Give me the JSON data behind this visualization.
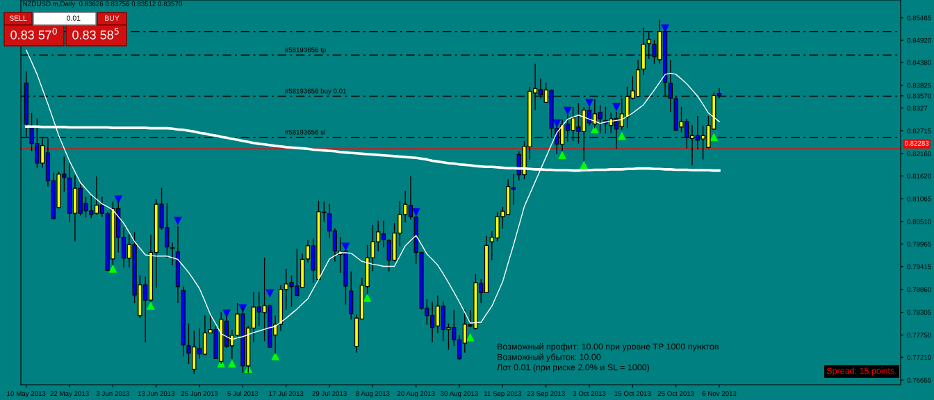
{
  "chart_data": {
    "type": "candlestick",
    "title": "NZDUSD.m,Daily  0.83626 0.83756 0.83512 0.83570",
    "annotations": [
      "SELL",
      "0.01",
      "BUY",
      "0.83 57$^{0}$",
      "0.83 58$^{5}$",
      "Возможный профит: 10.00 при уровне TP 1000 пунктов",
      "Возможный убыток: 10.00",
      "Лот 0.01 (при риске 2.0% и SL = 1000)",
      "Spread: 15 points."
    ],
    "categories": [
      "10 May 2013",
      null,
      null,
      null,
      null,
      null,
      null,
      null,
      "22 May 2013",
      null,
      null,
      null,
      null,
      null,
      null,
      null,
      "3 Jun 2013",
      null,
      null,
      null,
      null,
      null,
      null,
      null,
      "13 Jun 2013",
      null,
      null,
      null,
      null,
      null,
      null,
      null,
      "25 Jun 2013",
      null,
      null,
      null,
      null,
      null,
      null,
      null,
      "5 Jul 2013",
      null,
      null,
      null,
      null,
      null,
      null,
      null,
      "17 Jul 2013",
      null,
      null,
      null,
      null,
      null,
      null,
      null,
      "29 Jul 2013",
      null,
      null,
      null,
      null,
      null,
      null,
      null,
      "8 Aug 2013",
      null,
      null,
      null,
      null,
      null,
      null,
      null,
      "20 Aug 2013",
      null,
      null,
      null,
      null,
      null,
      null,
      null,
      "30 Aug 2013",
      null,
      null,
      null,
      null,
      null,
      null,
      null,
      "11 Sep 2013",
      null,
      null,
      null,
      null,
      null,
      null,
      null,
      "23 Sep 2013",
      null,
      null,
      null,
      null,
      null,
      null,
      null,
      "3 Oct 2013",
      null,
      null,
      null,
      null,
      null,
      null,
      null,
      "15 Oct 2013",
      null,
      null,
      null,
      null,
      null,
      null,
      null,
      "25 Oct 2013",
      null,
      null,
      null,
      null,
      null,
      null,
      null,
      "6 Nov 2013"
    ],
    "ylim": [
      0.7654,
      0.859
    ],
    "yticks": [
      0.85465,
      {
        "value": 0.8492,
        "label": "0.84920"
      },
      {
        "value": 0.8438,
        "label": "0.84380"
      },
      0.83825,
      {
        "value": 0.8357,
        "label": "0.83570"
      },
      0.8327,
      0.82715,
      {
        "value": 0.8216,
        "label": "0.82160"
      },
      {
        "value": 0.8162,
        "label": "0.81620"
      },
      0.81065,
      {
        "value": 0.8051,
        "label": "0.80510"
      },
      0.79965,
      0.79415,
      {
        "value": 0.7886,
        "label": "0.78860"
      },
      0.78305,
      {
        "value": 0.7775,
        "label": "0.77750"
      },
      {
        "value": 0.7721,
        "label": "0.77210"
      },
      0.76655
    ],
    "ref_lines": [
      {
        "axis": "y",
        "value": 0.8513,
        "label": null,
        "color": "#000000",
        "line_style": "dashed"
      },
      {
        "axis": "y",
        "value": 0.8456,
        "label": "#58193656 tp",
        "color": "#000000",
        "line_style": "dashed"
      },
      {
        "axis": "y",
        "value": 0.8356,
        "label": "#58193656 buy 0.01",
        "color": "#000000",
        "line_style": "dashed"
      },
      {
        "axis": "y",
        "value": 0.8256,
        "label": "#58193656 sl",
        "color": "#000000",
        "line_style": "dashed"
      },
      {
        "axis": "y",
        "value": 0.82283,
        "label": "0.82283",
        "color": "#ff0000",
        "line_style": "solid"
      }
    ],
    "series": [
      {
        "type": "line",
        "color": "#ffffff",
        "values": [
          0.8468,
          0.8439,
          0.8409,
          0.8373,
          0.8337,
          0.8299,
          0.826,
          0.8229,
          0.8198,
          0.8172,
          0.8146,
          0.8131,
          0.8116,
          0.8105,
          0.8094,
          0.8087,
          0.8079,
          0.8063,
          0.8047,
          0.8025,
          0.8002,
          0.7986,
          0.797,
          0.7968,
          0.7967,
          0.7967,
          0.7967,
          0.7963,
          0.7959,
          0.7943,
          0.7927,
          0.7908,
          0.7888,
          0.7857,
          0.7825,
          0.7802,
          0.7778,
          0.7771,
          0.7764,
          0.7768,
          0.7771,
          0.7776,
          0.7781,
          0.7785,
          0.7789,
          0.7793,
          0.7796,
          0.7806,
          0.7816,
          0.7827,
          0.7838,
          0.7851,
          0.7863,
          0.7887,
          0.791,
          0.7935,
          0.796,
          0.7968,
          0.7975,
          0.7975,
          0.7974,
          0.7964,
          0.7954,
          0.7951,
          0.7947,
          0.7945,
          0.7942,
          0.7942,
          0.7942,
          0.7967,
          0.7992,
          0.8005,
          0.8017,
          0.7995,
          0.7972,
          0.7959,
          0.7945,
          0.7924,
          0.7902,
          0.7879,
          0.7855,
          0.783,
          0.7804,
          0.7805,
          0.7806,
          0.7826,
          0.7845,
          0.7875,
          0.7905,
          0.795,
          0.7994,
          0.8041,
          0.8088,
          0.8118,
          0.8148,
          0.8178,
          0.8208,
          0.8238,
          0.8267,
          0.8284,
          0.83,
          0.8305,
          0.831,
          0.8305,
          0.83,
          0.8295,
          0.829,
          0.8293,
          0.8295,
          0.8297,
          0.8299,
          0.8307,
          0.8315,
          0.8325,
          0.8335,
          0.8353,
          0.8371,
          0.839,
          0.8409,
          0.8412,
          0.8409,
          0.8398,
          0.8386,
          0.8371,
          0.8356,
          0.8336,
          0.8315,
          0.8305,
          0.8294
        ]
      },
      {
        "type": "line",
        "color": "#ffffff",
        "values": [
          0.8282,
          0.8282,
          0.8282,
          0.8281,
          0.8281,
          0.8281,
          0.8281,
          0.8281,
          0.828,
          0.828,
          0.828,
          0.828,
          0.828,
          0.828,
          0.828,
          0.828,
          0.8279,
          0.8279,
          0.8279,
          0.8279,
          0.8279,
          0.8279,
          0.8279,
          0.8278,
          0.8278,
          0.8278,
          0.8278,
          0.8277,
          0.8275,
          0.8274,
          0.8272,
          0.827,
          0.8267,
          0.8265,
          0.8262,
          0.826,
          0.8257,
          0.8255,
          0.8252,
          0.825,
          0.8247,
          0.8245,
          0.8242,
          0.824,
          0.8239,
          0.8237,
          0.8235,
          0.8234,
          0.8232,
          0.8231,
          0.823,
          0.8229,
          0.8228,
          0.8226,
          0.8225,
          0.8224,
          0.8223,
          0.8222,
          0.822,
          0.8219,
          0.8218,
          0.8217,
          0.8216,
          0.8215,
          0.8214,
          0.8213,
          0.8212,
          0.8211,
          0.821,
          0.8209,
          0.8208,
          0.8207,
          0.8206,
          0.8204,
          0.8202,
          0.8199,
          0.8197,
          0.8195,
          0.8193,
          0.8192,
          0.819,
          0.8189,
          0.8188,
          0.8186,
          0.8185,
          0.8184,
          0.8184,
          0.8183,
          0.8182,
          0.8181,
          0.8181,
          0.818,
          0.818,
          0.8179,
          0.8178,
          0.8178,
          0.8177,
          0.8177,
          0.8176,
          0.8176,
          0.8176,
          0.8175,
          0.8175,
          0.8176,
          0.8176,
          0.8177,
          0.8177,
          0.8177,
          0.8178,
          0.8178,
          0.8178,
          0.8179,
          0.8179,
          0.818,
          0.818,
          0.818,
          0.8179,
          0.8179,
          0.8178,
          0.8178,
          0.8177,
          0.8177,
          0.8177,
          0.8176,
          0.8176,
          0.8176,
          0.8176,
          0.8175,
          0.8175
        ]
      },
      {
        "ohlc": [
          [
            0.8388,
            0.8416,
            0.8256,
            0.8288
          ],
          [
            0.8278,
            0.8315,
            0.8222,
            0.8241
          ],
          [
            0.8241,
            0.8302,
            0.8182,
            0.8193
          ],
          [
            0.8193,
            0.8254,
            0.8182,
            0.8236
          ],
          [
            0.8218,
            0.8254,
            0.8136,
            0.815
          ],
          [
            0.815,
            0.817,
            0.8056,
            0.8058
          ],
          [
            0.8085,
            0.8172,
            0.8083,
            0.8166
          ],
          [
            0.8166,
            0.8209,
            0.8124,
            0.8159
          ],
          [
            0.8157,
            0.8193,
            0.8049,
            0.8071
          ],
          [
            0.8071,
            0.8164,
            0.8003,
            0.8132
          ],
          [
            0.8132,
            0.8142,
            0.8066,
            0.8071
          ],
          [
            0.8095,
            0.8111,
            0.8061,
            0.8077
          ],
          [
            0.8077,
            0.8114,
            0.8059,
            0.8068
          ],
          [
            0.8071,
            0.8161,
            0.8068,
            0.8091
          ],
          [
            0.8091,
            0.8111,
            0.8062,
            0.8071
          ],
          [
            0.807,
            0.8075,
            0.793,
            0.7932
          ],
          [
            0.796,
            0.8099,
            0.7945,
            0.8082
          ],
          [
            0.8082,
            0.8099,
            0.7976,
            0.8013
          ],
          [
            0.8013,
            0.8037,
            0.7939,
            0.7962
          ],
          [
            0.7962,
            0.802,
            0.7939,
            0.7995
          ],
          [
            0.7995,
            0.8025,
            0.7853,
            0.7872
          ],
          [
            0.7822,
            0.792,
            0.7816,
            0.7897
          ],
          [
            0.7897,
            0.7917,
            0.7757,
            0.786
          ],
          [
            0.786,
            0.8019,
            0.7856,
            0.7976
          ],
          [
            0.7976,
            0.8105,
            0.789,
            0.8093
          ],
          [
            0.8093,
            0.8133,
            0.8031,
            0.8036
          ],
          [
            0.8036,
            0.8096,
            0.7963,
            0.7989
          ],
          [
            0.7987,
            0.8,
            0.7945,
            0.7986
          ],
          [
            0.7977,
            0.804,
            0.7853,
            0.7893
          ],
          [
            0.7883,
            0.7893,
            0.7723,
            0.7751
          ],
          [
            0.7749,
            0.7803,
            0.7705,
            0.7731
          ],
          [
            0.7692,
            0.7785,
            0.768,
            0.7746
          ],
          [
            0.7742,
            0.7791,
            0.7717,
            0.7729
          ],
          [
            0.7728,
            0.7822,
            0.7726,
            0.778
          ],
          [
            0.778,
            0.7822,
            0.7779,
            0.7788
          ],
          [
            0.7788,
            0.7797,
            0.7717,
            0.7718
          ],
          [
            0.7711,
            0.7831,
            0.7705,
            0.7813
          ],
          [
            0.7809,
            0.7822,
            0.7744,
            0.7747
          ],
          [
            0.7749,
            0.7788,
            0.7717,
            0.7774
          ],
          [
            0.7774,
            0.7853,
            0.7766,
            0.7826
          ],
          [
            0.7826,
            0.7843,
            0.7683,
            0.77
          ],
          [
            0.77,
            0.7797,
            0.7683,
            0.7792
          ],
          [
            0.7792,
            0.788,
            0.7757,
            0.7843
          ],
          [
            0.7843,
            0.788,
            0.7797,
            0.7831
          ],
          [
            0.783,
            0.7963,
            0.776,
            0.7846
          ],
          [
            0.7846,
            0.7849,
            0.7743,
            0.7745
          ],
          [
            0.7775,
            0.7822,
            0.7729,
            0.7801
          ],
          [
            0.7801,
            0.7896,
            0.7785,
            0.7886
          ],
          [
            0.7886,
            0.7936,
            0.7837,
            0.7899
          ],
          [
            0.7903,
            0.792,
            0.7843,
            0.7893
          ],
          [
            0.7894,
            0.7985,
            0.787,
            0.7871
          ],
          [
            0.7891,
            0.7973,
            0.789,
            0.7959
          ],
          [
            0.796,
            0.8006,
            0.7951,
            0.7992
          ],
          [
            0.7992,
            0.801,
            0.7902,
            0.7933
          ],
          [
            0.791,
            0.8102,
            0.7908,
            0.8075
          ],
          [
            0.8074,
            0.8099,
            0.805,
            0.8073
          ],
          [
            0.807,
            0.8094,
            0.801,
            0.8028
          ],
          [
            0.8028,
            0.8034,
            0.7954,
            0.798
          ],
          [
            0.7971,
            0.8013,
            0.7926,
            0.7979
          ],
          [
            0.7979,
            0.7982,
            0.7849,
            0.7894
          ],
          [
            0.7882,
            0.793,
            0.7813,
            0.7827
          ],
          [
            0.7747,
            0.7825,
            0.7732,
            0.7816
          ],
          [
            0.7814,
            0.7914,
            0.7813,
            0.7896
          ],
          [
            0.7893,
            0.7994,
            0.7874,
            0.7963
          ],
          [
            0.7963,
            0.8043,
            0.793,
            0.8002
          ],
          [
            0.8002,
            0.8053,
            0.7979,
            0.8026
          ],
          [
            0.8021,
            0.8053,
            0.7988,
            0.8007
          ],
          [
            0.8005,
            0.8008,
            0.793,
            0.7957
          ],
          [
            0.7957,
            0.8048,
            0.7954,
            0.8023
          ],
          [
            0.8023,
            0.81,
            0.7991,
            0.8068
          ],
          [
            0.8068,
            0.8126,
            0.8049,
            0.8093
          ],
          [
            0.809,
            0.8161,
            0.8056,
            0.8063
          ],
          [
            0.8062,
            0.8065,
            0.7948,
            0.7976
          ],
          [
            0.7976,
            0.7977,
            0.7837,
            0.784
          ],
          [
            0.784,
            0.7862,
            0.78,
            0.7822
          ],
          [
            0.7822,
            0.7856,
            0.7757,
            0.7793
          ],
          [
            0.7797,
            0.7871,
            0.7779,
            0.7845
          ],
          [
            0.7845,
            0.7856,
            0.776,
            0.7788
          ],
          [
            0.7789,
            0.7803,
            0.7739,
            0.7793
          ],
          [
            0.7793,
            0.7835,
            0.7748,
            0.7763
          ],
          [
            0.7763,
            0.7775,
            0.7714,
            0.7717
          ],
          [
            0.7755,
            0.7837,
            0.7732,
            0.7801
          ],
          [
            0.78,
            0.7835,
            0.7794,
            0.7796
          ],
          [
            0.7791,
            0.7923,
            0.7788,
            0.7902
          ],
          [
            0.79,
            0.7911,
            0.7853,
            0.7878
          ],
          [
            0.7878,
            0.8016,
            0.7877,
            0.7993
          ],
          [
            0.8002,
            0.8028,
            0.7957,
            0.8013
          ],
          [
            0.8011,
            0.8075,
            0.8003,
            0.8063
          ],
          [
            0.8063,
            0.8087,
            0.8034,
            0.8076
          ],
          [
            0.8068,
            0.8154,
            0.8067,
            0.8136
          ],
          [
            0.8133,
            0.8167,
            0.8092,
            0.813
          ],
          [
            0.8214,
            0.8222,
            0.8151,
            0.8165
          ],
          [
            0.8165,
            0.8247,
            0.8154,
            0.8234
          ],
          [
            0.8233,
            0.8379,
            0.8202,
            0.8368
          ],
          [
            0.8364,
            0.8435,
            0.8322,
            0.8375
          ],
          [
            0.8372,
            0.8399,
            0.8351,
            0.8359
          ],
          [
            0.8341,
            0.8389,
            0.834,
            0.8371
          ],
          [
            0.837,
            0.8371,
            0.8254,
            0.8278
          ],
          [
            0.8278,
            0.8284,
            0.8215,
            0.8239
          ],
          [
            0.8239,
            0.8299,
            0.8222,
            0.8286
          ],
          [
            0.8288,
            0.8311,
            0.8244,
            0.8273
          ],
          [
            0.8273,
            0.833,
            0.8247,
            0.8303
          ],
          [
            0.8281,
            0.8339,
            0.8241,
            0.827
          ],
          [
            0.827,
            0.833,
            0.8198,
            0.8322
          ],
          [
            0.8322,
            0.833,
            0.8284,
            0.8291
          ],
          [
            0.8288,
            0.8348,
            0.8278,
            0.8313
          ],
          [
            0.8317,
            0.8334,
            0.8266,
            0.8301
          ],
          [
            0.8297,
            0.833,
            0.8265,
            0.829
          ],
          [
            0.8285,
            0.8316,
            0.8266,
            0.8301
          ],
          [
            0.8302,
            0.8318,
            0.8228,
            0.8276
          ],
          [
            0.8282,
            0.8351,
            0.8274,
            0.8313
          ],
          [
            0.8305,
            0.8379,
            0.8278,
            0.8355
          ],
          [
            0.8351,
            0.8404,
            0.8348,
            0.8369
          ],
          [
            0.8356,
            0.8444,
            0.8353,
            0.842
          ],
          [
            0.8422,
            0.8523,
            0.8407,
            0.8482
          ],
          [
            0.8484,
            0.8513,
            0.8447,
            0.8494
          ],
          [
            0.8482,
            0.8493,
            0.8435,
            0.8452
          ],
          [
            0.8445,
            0.8542,
            0.8435,
            0.8513
          ],
          [
            0.8513,
            0.8518,
            0.8355,
            0.839
          ],
          [
            0.8387,
            0.8444,
            0.8318,
            0.8351
          ],
          [
            0.835,
            0.8355,
            0.8272,
            0.8273
          ],
          [
            0.8281,
            0.833,
            0.8268,
            0.8294
          ],
          [
            0.8294,
            0.8301,
            0.8229,
            0.8255
          ],
          [
            0.8253,
            0.8285,
            0.8188,
            0.826
          ],
          [
            0.826,
            0.8308,
            0.8227,
            0.8249
          ],
          [
            0.8252,
            0.8284,
            0.8202,
            0.826
          ],
          [
            0.8231,
            0.8308,
            0.8229,
            0.8285
          ],
          [
            0.8276,
            0.8365,
            0.8274,
            0.8358
          ],
          [
            0.83626,
            0.83756,
            0.83512,
            0.8357
          ]
        ],
        "colors": [
          "#0000ff",
          "#0000ff",
          "#0000ff",
          "#ffff00",
          "#0000ff",
          "#0000ff",
          "#ffff00",
          "#0000ff",
          "#0000ff",
          "#ffff00",
          "#0000ff",
          "#0000ff",
          "#0000ff",
          "#ffff00",
          "#0000ff",
          "#0000ff",
          "#ffff00",
          "#0000ff",
          "#0000ff",
          "#ffff00",
          "#0000ff",
          "#ffff00",
          "#0000ff",
          "#ffff00",
          "#ffff00",
          "#0000ff",
          "#0000ff",
          "#0000ff",
          "#0000ff",
          "#0000ff",
          "#0000ff",
          "#ffff00",
          "#0000ff",
          "#ffff00",
          "#ffff00",
          "#0000ff",
          "#ffff00",
          "#0000ff",
          "#ffff00",
          "#ffff00",
          "#0000ff",
          "#ffff00",
          "#ffff00",
          "#0000ff",
          "#ffff00",
          "#0000ff",
          "#ffff00",
          "#ffff00",
          "#ffff00",
          "#0000ff",
          "#0000ff",
          "#ffff00",
          "#ffff00",
          "#0000ff",
          "#ffff00",
          "#0000ff",
          "#0000ff",
          "#0000ff",
          "#ffff00",
          "#0000ff",
          "#0000ff",
          "#ffff00",
          "#ffff00",
          "#ffff00",
          "#ffff00",
          "#ffff00",
          "#0000ff",
          "#0000ff",
          "#ffff00",
          "#ffff00",
          "#ffff00",
          "#0000ff",
          "#0000ff",
          "#0000ff",
          "#0000ff",
          "#0000ff",
          "#ffff00",
          "#0000ff",
          "#ffff00",
          "#0000ff",
          "#0000ff",
          "#ffff00",
          "#0000ff",
          "#ffff00",
          "#0000ff",
          "#ffff00",
          "#ffff00",
          "#ffff00",
          "#ffff00",
          "#ffff00",
          "#0000ff",
          "#0000ff",
          "#ffff00",
          "#ffff00",
          "#ffff00",
          "#0000ff",
          "#ffff00",
          "#0000ff",
          "#0000ff",
          "#ffff00",
          "#0000ff",
          "#ffff00",
          "#0000ff",
          "#ffff00",
          "#0000ff",
          "#ffff00",
          "#0000ff",
          "#0000ff",
          "#ffff00",
          "#0000ff",
          "#ffff00",
          "#ffff00",
          "#ffff00",
          "#ffff00",
          "#ffff00",
          "#ffff00",
          "#0000ff",
          "#ffff00",
          "#0000ff",
          "#0000ff",
          "#0000ff",
          "#ffff00",
          "#0000ff",
          "#ffff00",
          "#0000ff",
          "#ffff00",
          "#ffff00",
          "#ffff00",
          "#0000ff"
        ]
      },
      {
        "type": "scatter",
        "color": "#0000ff",
        "marker": "triangle",
        "values": [
          null,
          null,
          null,
          null,
          null,
          null,
          null,
          null,
          null,
          null,
          null,
          null,
          null,
          null,
          null,
          null,
          null,
          0.8105,
          null,
          null,
          null,
          null,
          null,
          null,
          null,
          null,
          null,
          null,
          0.8053,
          null,
          null,
          null,
          null,
          null,
          null,
          null,
          null,
          0.7828,
          null,
          null,
          0.784,
          null,
          null,
          null,
          null,
          0.7877,
          null,
          null,
          null,
          null,
          null,
          null,
          null,
          null,
          null,
          null,
          null,
          null,
          null,
          0.799,
          null,
          null,
          null,
          null,
          null,
          null,
          null,
          null,
          null,
          null,
          null,
          null,
          0.8074,
          null,
          null,
          null,
          null,
          null,
          null,
          null,
          null,
          null,
          null,
          null,
          null,
          null,
          null,
          null,
          null,
          null,
          null,
          null,
          null,
          null,
          null,
          null,
          null,
          null,
          0.829,
          null,
          0.8321,
          null,
          null,
          null,
          0.834,
          null,
          null,
          null,
          null,
          0.833,
          null,
          null,
          null,
          null,
          null,
          null,
          null,
          null,
          0.8521,
          null,
          null,
          null,
          null,
          null,
          null,
          null,
          null,
          null,
          null
        ]
      },
      {
        "type": "scatter",
        "color": "#00ff00",
        "marker": "triangle",
        "values": [
          null,
          null,
          null,
          null,
          null,
          null,
          null,
          null,
          null,
          null,
          null,
          null,
          null,
          null,
          null,
          null,
          0.7936,
          null,
          null,
          null,
          null,
          null,
          null,
          0.7846,
          null,
          null,
          null,
          null,
          null,
          null,
          null,
          null,
          null,
          null,
          null,
          null,
          0.7705,
          null,
          0.7705,
          null,
          null,
          0.7692,
          null,
          null,
          null,
          null,
          0.7723,
          null,
          null,
          null,
          null,
          null,
          null,
          null,
          null,
          null,
          null,
          null,
          null,
          null,
          null,
          null,
          null,
          0.7865,
          null,
          null,
          null,
          null,
          null,
          null,
          null,
          null,
          null,
          null,
          null,
          null,
          null,
          null,
          null,
          null,
          null,
          null,
          0.7769,
          null,
          null,
          null,
          null,
          null,
          null,
          null,
          null,
          null,
          null,
          null,
          null,
          null,
          null,
          null,
          null,
          0.8212,
          null,
          null,
          null,
          0.8188,
          null,
          0.8275,
          null,
          null,
          null,
          null,
          0.8259,
          null,
          null,
          null,
          null,
          null,
          null,
          null,
          null,
          null,
          null,
          null,
          null,
          null,
          null,
          null,
          null,
          0.8256,
          null
        ]
      }
    ]
  }
}
